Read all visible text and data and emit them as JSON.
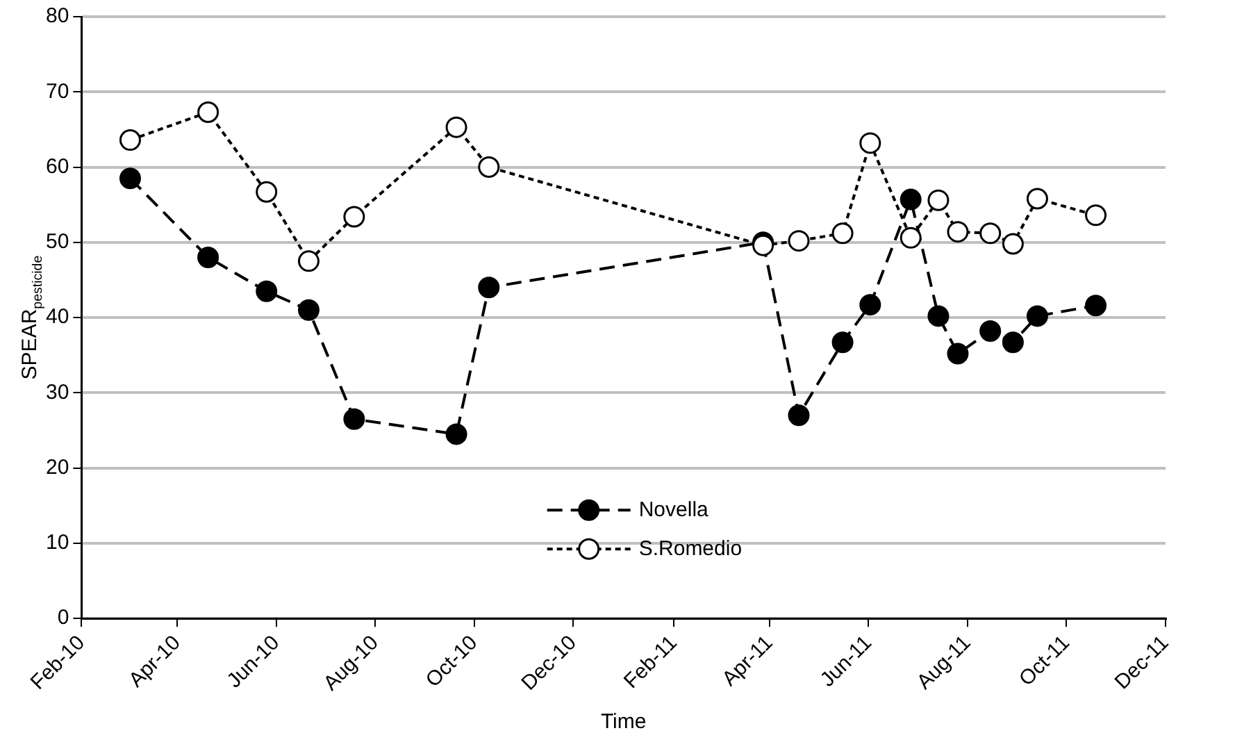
{
  "chart_data": {
    "type": "line",
    "xlabel": "Time",
    "ylabel": "SPEAR$_{pesticide}$",
    "x": [
      "2010-03-03",
      "2010-04-20",
      "2010-05-26",
      "2010-06-21",
      "2010-07-19",
      "2010-09-20",
      "2010-10-10",
      "2011-03-28",
      "2011-04-19",
      "2011-05-16",
      "2011-06-02",
      "2011-06-27",
      "2011-07-14",
      "2011-07-26",
      "2011-08-15",
      "2011-08-29",
      "2011-09-13",
      "2011-10-19"
    ],
    "series": [
      {
        "name": "Novella",
        "color": "#000000",
        "line_style": "dashed",
        "values": [
          58.5,
          48,
          43.5,
          41,
          26.5,
          24.5,
          44,
          50,
          27,
          36.7,
          41.7,
          55.7,
          40.2,
          35.2,
          38.2,
          36.7,
          40.2,
          41.6
        ]
      },
      {
        "name": "S.Romedio",
        "color": "#ffffff",
        "line_style": "dotted",
        "values": [
          63.6,
          67.3,
          56.7,
          47.5,
          53.4,
          65.3,
          60,
          49.6,
          50.2,
          51.2,
          63.2,
          50.6,
          55.6,
          51.4,
          51.2,
          49.8,
          55.8,
          53.6
        ]
      }
    ],
    "xlim": [
      "2010-02-01",
      "2011-12-01"
    ],
    "xticks": [
      {
        "value": "2010-02-01",
        "label": "Feb-10"
      },
      {
        "value": "2010-04-01",
        "label": "Apr-10"
      },
      {
        "value": "2010-06-01",
        "label": "Jun-10"
      },
      {
        "value": "2010-08-01",
        "label": "Aug-10"
      },
      {
        "value": "2010-10-01",
        "label": "Oct-10"
      },
      {
        "value": "2010-12-01",
        "label": "Dec-10"
      },
      {
        "value": "2011-02-01",
        "label": "Feb-11"
      },
      {
        "value": "2011-04-01",
        "label": "Apr-11"
      },
      {
        "value": "2011-06-01",
        "label": "Jun-11"
      },
      {
        "value": "2011-08-01",
        "label": "Aug-11"
      },
      {
        "value": "2011-10-01",
        "label": "Oct-11"
      },
      {
        "value": "2011-12-01",
        "label": "Dec-11"
      }
    ],
    "ylim": [
      0,
      80
    ],
    "yticks": [
      0,
      10,
      20,
      30,
      40,
      50,
      60,
      70,
      80
    ],
    "grid": "y",
    "legend": "bottom",
    "marker": "circle"
  }
}
